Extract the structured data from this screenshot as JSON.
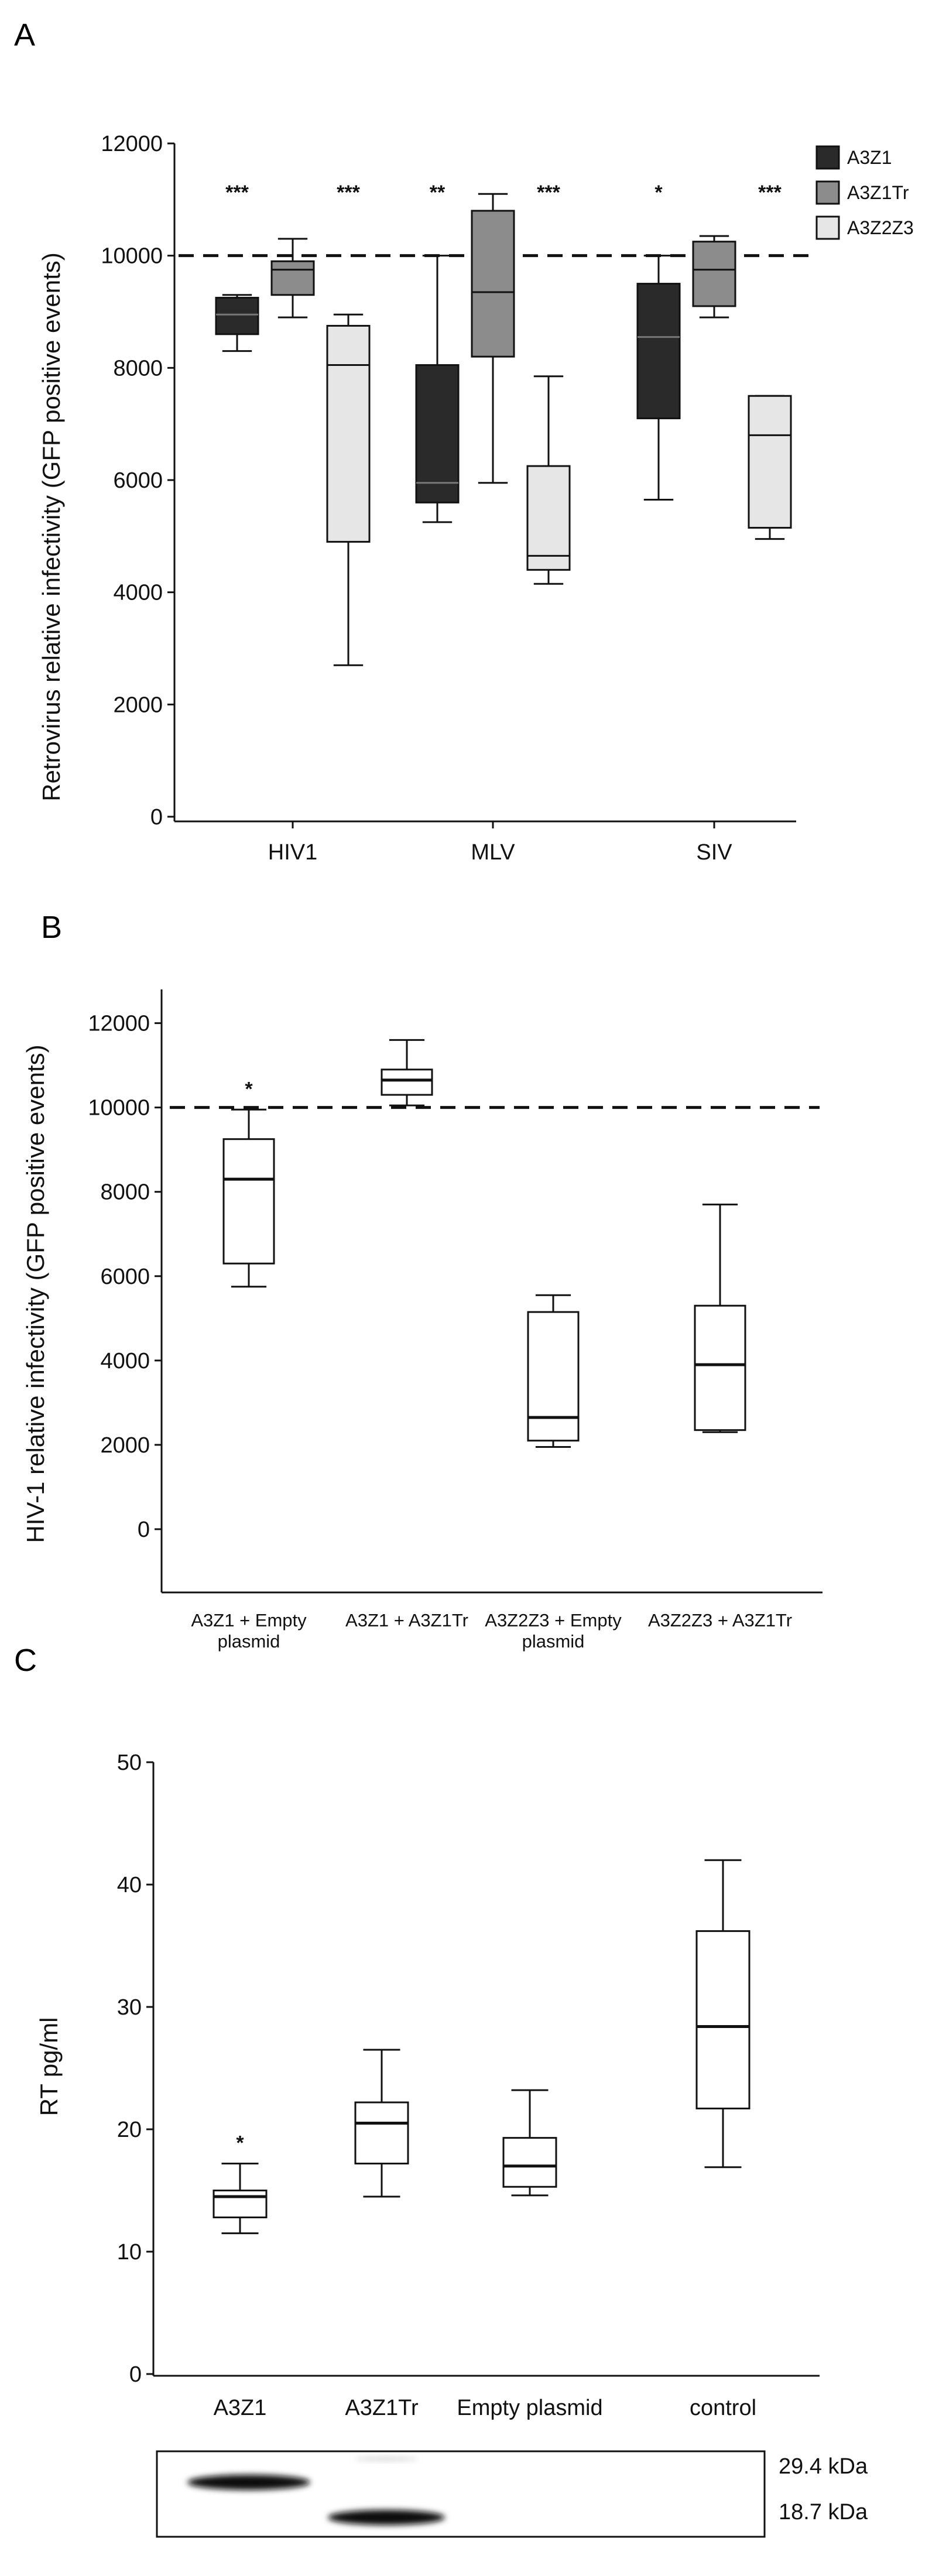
{
  "chart_data": [
    {
      "panel": "A",
      "type": "box",
      "ylabel": "Retrovirus relative infectivity (GFP positive events)",
      "ylim": [
        0,
        12000
      ],
      "yticks": [
        0,
        2000,
        4000,
        6000,
        8000,
        10000,
        12000
      ],
      "reference_line": 10000,
      "categories": [
        "HIV1",
        "MLV",
        "SIV"
      ],
      "legend": [
        {
          "name": "A3Z1",
          "color": "#2a2a2a"
        },
        {
          "name": "A3Z1Tr",
          "color": "#8c8c8c"
        },
        {
          "name": "A3Z2Z3",
          "color": "#e6e6e6"
        }
      ],
      "boxes": [
        {
          "category": "HIV1",
          "series": "A3Z1",
          "min": 8300,
          "q1": 8600,
          "median": 8950,
          "q3": 9250,
          "max": 9300,
          "sig": "***"
        },
        {
          "category": "HIV1",
          "series": "A3Z1Tr",
          "min": 8900,
          "q1": 9300,
          "median": 9750,
          "q3": 9900,
          "max": 10300,
          "sig": ""
        },
        {
          "category": "HIV1",
          "series": "A3Z2Z3",
          "min": 2700,
          "q1": 4900,
          "median": 8050,
          "q3": 8750,
          "max": 8950,
          "sig": "***"
        },
        {
          "category": "MLV",
          "series": "A3Z1",
          "min": 5250,
          "q1": 5600,
          "median": 5950,
          "q3": 8050,
          "max": 10000,
          "sig": "**"
        },
        {
          "category": "MLV",
          "series": "A3Z1Tr",
          "min": 5950,
          "q1": 8200,
          "median": 9350,
          "q3": 10800,
          "max": 11100,
          "sig": ""
        },
        {
          "category": "MLV",
          "series": "A3Z2Z3",
          "min": 4150,
          "q1": 4400,
          "median": 4650,
          "q3": 6250,
          "max": 7850,
          "sig": "***"
        },
        {
          "category": "SIV",
          "series": "A3Z1",
          "min": 5650,
          "q1": 7100,
          "median": 8550,
          "q3": 9500,
          "max": 10000,
          "sig": "*"
        },
        {
          "category": "SIV",
          "series": "A3Z1Tr",
          "min": 8900,
          "q1": 9100,
          "median": 9750,
          "q3": 10250,
          "max": 10350,
          "sig": ""
        },
        {
          "category": "SIV",
          "series": "A3Z2Z3",
          "min": 4950,
          "q1": 5150,
          "median": 6800,
          "q3": 7500,
          "max": 7500,
          "sig": "***"
        }
      ]
    },
    {
      "panel": "B",
      "type": "box",
      "ylabel": "HIV-1 relative infectivity (GFP positive events)",
      "ylim": [
        -1500,
        12800
      ],
      "yticks": [
        0,
        2000,
        4000,
        6000,
        8000,
        10000,
        12000
      ],
      "reference_line": 10000,
      "categories": [
        [
          "A3Z1 + Empty",
          "plasmid"
        ],
        [
          "A3Z1 + A3Z1Tr"
        ],
        [
          "A3Z2Z3 + Empty",
          "plasmid"
        ],
        [
          "A3Z2Z3 + A3Z1Tr"
        ]
      ],
      "boxes": [
        {
          "min": 5750,
          "q1": 6300,
          "median": 8300,
          "q3": 9250,
          "max": 9950,
          "sig": "*"
        },
        {
          "min": 10050,
          "q1": 10300,
          "median": 10650,
          "q3": 10900,
          "max": 11600,
          "sig": ""
        },
        {
          "min": 1950,
          "q1": 2100,
          "median": 2650,
          "q3": 5150,
          "max": 5550,
          "sig": ""
        },
        {
          "min": 2300,
          "q1": 2350,
          "median": 3900,
          "q3": 5300,
          "max": 7700,
          "sig": ""
        }
      ]
    },
    {
      "panel": "C",
      "type": "box",
      "ylabel": "RT pg/ml",
      "ylim": [
        0,
        50
      ],
      "yticks": [
        0,
        10,
        20,
        30,
        40,
        50
      ],
      "categories": [
        "A3Z1",
        "A3Z1Tr",
        "Empty plasmid",
        "control"
      ],
      "boxes": [
        {
          "min": 11.5,
          "q1": 12.8,
          "median": 14.5,
          "q3": 15.0,
          "max": 17.2,
          "sig": "*"
        },
        {
          "min": 14.5,
          "q1": 17.2,
          "median": 20.5,
          "q3": 22.2,
          "max": 26.5,
          "sig": ""
        },
        {
          "min": 14.6,
          "q1": 15.3,
          "median": 17.0,
          "q3": 19.3,
          "max": 23.2,
          "sig": ""
        },
        {
          "min": 16.9,
          "q1": 21.7,
          "median": 28.4,
          "q3": 36.2,
          "max": 42.0,
          "sig": ""
        }
      ]
    }
  ],
  "panel_letters": {
    "a": "A",
    "b": "B",
    "c": "C"
  },
  "blot": {
    "labels": [
      "29.4 kDa",
      "18.7 kDa"
    ]
  }
}
